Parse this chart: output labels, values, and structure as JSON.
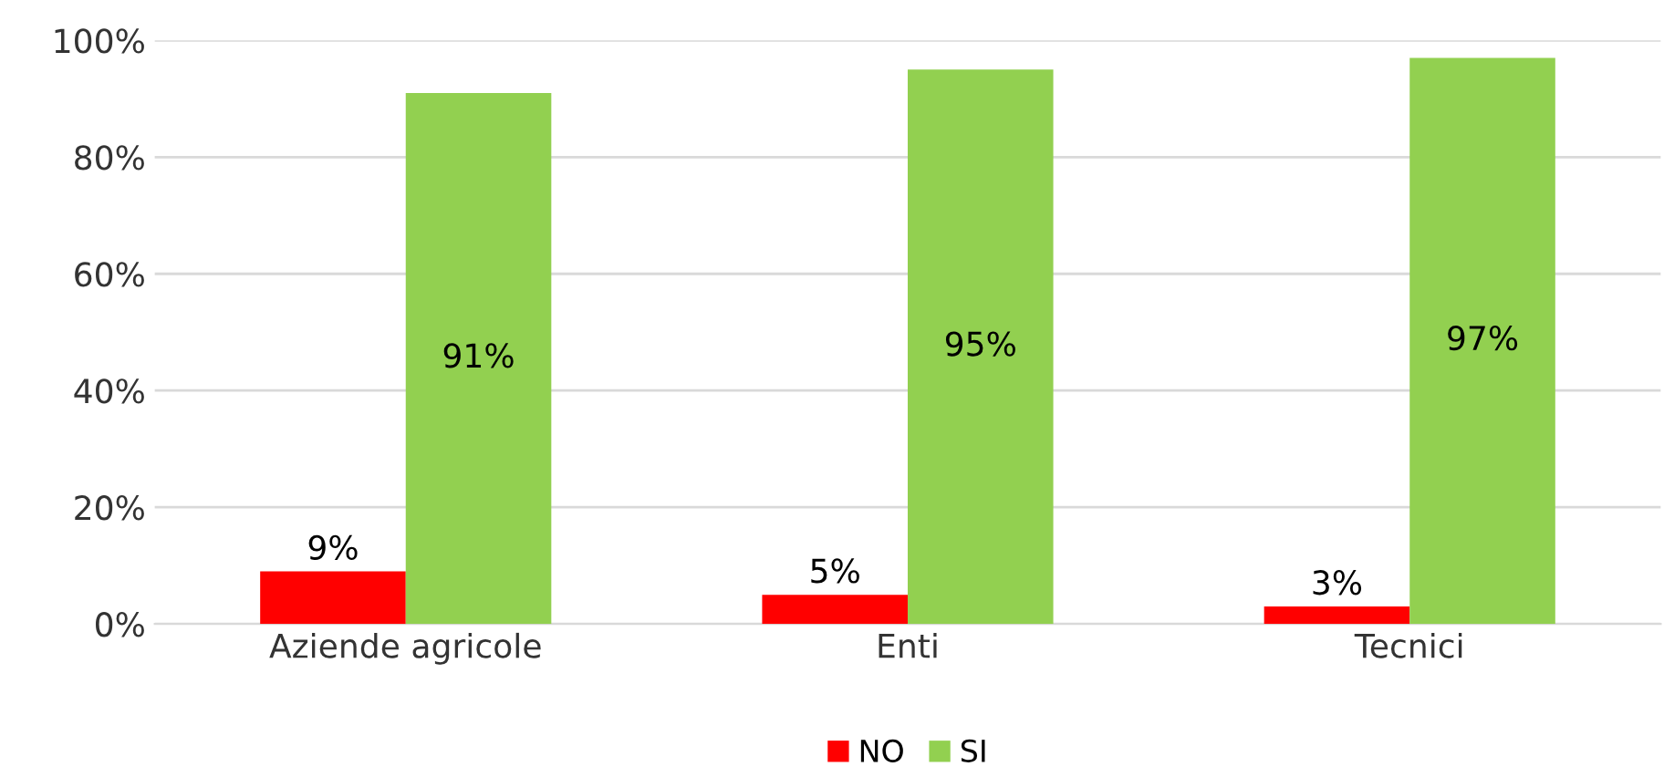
{
  "chart_data": {
    "type": "bar",
    "categories": [
      "Aziende agricole",
      "Enti",
      "Tecnici"
    ],
    "series": [
      {
        "name": "NO",
        "color": "#ff0000",
        "values": [
          9,
          5,
          3
        ],
        "value_labels": [
          "9%",
          "5%",
          "3%"
        ]
      },
      {
        "name": "SI",
        "color": "#92d050",
        "values": [
          91,
          95,
          97
        ],
        "value_labels": [
          "91%",
          "95%",
          "97%"
        ]
      }
    ],
    "ylim": [
      0,
      100
    ],
    "yticks": [
      {
        "value": 0,
        "label": "0%"
      },
      {
        "value": 20,
        "label": "20%"
      },
      {
        "value": 40,
        "label": "40%"
      },
      {
        "value": 60,
        "label": "60%"
      },
      {
        "value": 80,
        "label": "80%"
      },
      {
        "value": 100,
        "label": "100%"
      }
    ],
    "grid": "y",
    "legend": "bottom"
  }
}
